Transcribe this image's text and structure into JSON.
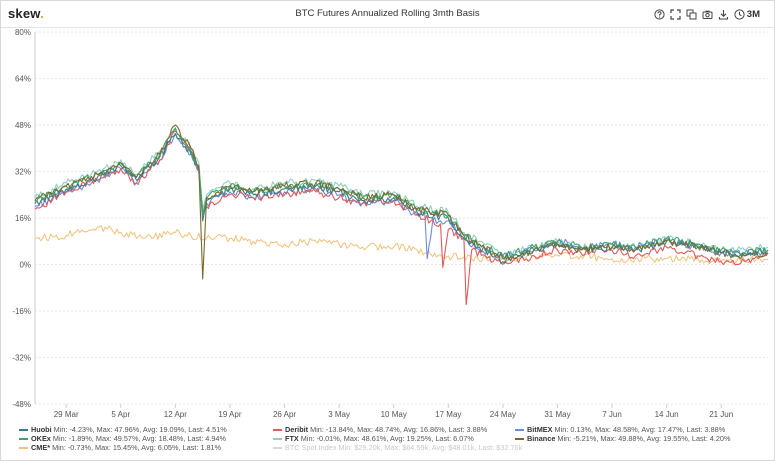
{
  "header": {
    "logo_text": "skew",
    "logo_dot": ".",
    "title": "BTC Futures Annualized Rolling 3mth Basis",
    "period_label": "3M",
    "icons": [
      "help-icon",
      "fullscreen-icon",
      "copy-icon",
      "camera-icon",
      "download-icon",
      "clock-icon"
    ]
  },
  "chart_data": {
    "type": "line",
    "title": "BTC Futures Annualized Rolling 3mth Basis",
    "xlabel": "",
    "ylabel": "",
    "y_ticks": [
      "80%",
      "64%",
      "48%",
      "32%",
      "16%",
      "0%",
      "-16%",
      "-32%",
      "-48%"
    ],
    "y_tick_values": [
      80,
      64,
      48,
      32,
      16,
      0,
      -16,
      -32,
      -48
    ],
    "ylim": [
      -48,
      80
    ],
    "x_ticks": [
      "29 Mar",
      "5 Apr",
      "12 Apr",
      "19 Apr",
      "26 Apr",
      "3 May",
      "10 May",
      "17 May",
      "24 May",
      "31 May",
      "7 Jun",
      "14 Jun",
      "21 Jun"
    ],
    "x_tick_days": [
      4,
      11,
      18,
      25,
      32,
      39,
      46,
      53,
      60,
      67,
      74,
      81,
      88
    ],
    "x_range_days": [
      0,
      94
    ],
    "grid": "horizontal",
    "colors": {
      "Huobi": "#3b7a8c",
      "Deribit": "#e05a5a",
      "BitMEX": "#6a8fd8",
      "OKEx": "#3aa46a",
      "FTX": "#8fd0c0",
      "Binance": "#7a6a2a",
      "CME*": "#f2c07a"
    },
    "series": [
      {
        "name": "Huobi",
        "legend_stats": "Min: -4.23%, Max: 47.96%, Avg: 19.09%, Last: 4.51%",
        "x": [
          0,
          4,
          8,
          11,
          13,
          16,
          18,
          20,
          21,
          21.5,
          22,
          25,
          28,
          32,
          36,
          39,
          42,
          46,
          49,
          53,
          55,
          57,
          60,
          64,
          67,
          70,
          74,
          77,
          81,
          85,
          88,
          91,
          94
        ],
        "values": [
          21,
          26,
          30,
          34,
          29,
          37,
          45,
          38,
          33,
          15,
          22,
          26,
          24,
          26,
          27,
          25,
          22,
          23,
          18,
          16,
          9,
          6,
          1,
          5,
          7,
          5,
          6,
          5,
          8,
          6,
          4,
          3,
          5
        ]
      },
      {
        "name": "Deribit",
        "legend_stats": "Min: -13.84%, Max: 48.74%, Avg: 16.86%, Last: 3.88%",
        "x": [
          0,
          4,
          8,
          11,
          13,
          16,
          18,
          20,
          21,
          21.5,
          22,
          25,
          28,
          32,
          36,
          39,
          42,
          46,
          49,
          52,
          52.3,
          53,
          55,
          55.3,
          56,
          60,
          64,
          67,
          70,
          74,
          77,
          81,
          85,
          88,
          91,
          94
        ],
        "values": [
          19,
          25,
          29,
          33,
          28,
          36,
          46,
          39,
          32,
          18,
          20,
          24,
          23,
          24,
          25,
          23,
          21,
          22,
          17,
          14,
          -1,
          12,
          9,
          -13.8,
          5,
          0,
          3,
          5,
          4,
          5,
          3,
          6,
          3,
          1,
          1,
          4
        ]
      },
      {
        "name": "BitMEX",
        "legend_stats": "Min: 0.13%, Max: 48.58%, Avg: 17.47%, Last: 3.88%",
        "x": [
          0,
          4,
          8,
          11,
          13,
          16,
          18,
          20,
          21,
          21.5,
          22,
          25,
          28,
          32,
          36,
          39,
          42,
          46,
          49,
          50,
          50.3,
          51,
          53,
          55,
          57,
          60,
          64,
          67,
          70,
          74,
          77,
          81,
          85,
          88,
          91,
          94
        ],
        "values": [
          20,
          25,
          29,
          33,
          28,
          36,
          45,
          38,
          32,
          18,
          21,
          25,
          23,
          25,
          26,
          24,
          21,
          22,
          17,
          17,
          2,
          15,
          15,
          9,
          5,
          3,
          5,
          8,
          6,
          7,
          6,
          8,
          6,
          4,
          4,
          4
        ]
      },
      {
        "name": "OKEx",
        "legend_stats": "Min: -1.89%, Max: 49.57%, Avg: 18.48%, Last: 4.94%",
        "x": [
          0,
          4,
          8,
          11,
          13,
          16,
          18,
          20,
          21,
          21.5,
          22,
          25,
          28,
          32,
          36,
          39,
          42,
          46,
          49,
          53,
          55,
          57,
          60,
          64,
          67,
          70,
          74,
          77,
          81,
          85,
          88,
          91,
          94
        ],
        "values": [
          22,
          27,
          31,
          35,
          30,
          38,
          47,
          39,
          34,
          17,
          23,
          27,
          25,
          27,
          28,
          26,
          23,
          24,
          19,
          17,
          10,
          7,
          3,
          6,
          8,
          6,
          7,
          6,
          9,
          7,
          5,
          4,
          5
        ]
      },
      {
        "name": "FTX",
        "legend_stats": "Min: -0.01%, Max: 48.61%, Avg: 19.25%, Last: 6.07%",
        "x": [
          0,
          4,
          8,
          11,
          13,
          16,
          18,
          20,
          21,
          21.5,
          22,
          25,
          28,
          32,
          36,
          39,
          42,
          46,
          49,
          53,
          55,
          57,
          60,
          64,
          67,
          70,
          74,
          77,
          81,
          85,
          88,
          91,
          94
        ],
        "values": [
          23,
          28,
          32,
          36,
          31,
          39,
          47,
          40,
          35,
          19,
          24,
          28,
          26,
          28,
          29,
          27,
          24,
          25,
          20,
          18,
          11,
          8,
          3,
          6,
          8,
          6,
          7,
          6,
          9,
          7,
          5,
          5,
          6
        ]
      },
      {
        "name": "Binance",
        "legend_stats": "Min: -5.21%, Max: 49.88%, Avg: 19.55%, Last: 4.20%",
        "x": [
          0,
          4,
          8,
          11,
          13,
          16,
          18,
          20,
          21,
          21.5,
          22,
          25,
          28,
          32,
          36,
          39,
          42,
          46,
          49,
          53,
          55,
          57,
          60,
          64,
          67,
          70,
          74,
          77,
          81,
          85,
          88,
          91,
          94
        ],
        "values": [
          22,
          27,
          31,
          35,
          30,
          38,
          48,
          40,
          34,
          -5,
          23,
          27,
          25,
          27,
          28,
          26,
          23,
          24,
          19,
          17,
          10,
          7,
          2,
          5,
          7,
          5,
          6,
          5,
          8,
          6,
          4,
          3,
          4
        ]
      },
      {
        "name": "CME*",
        "legend_stats": "Min: -0.73%, Max: 15.45%, Avg: 6.05%, Last: 1.81%",
        "x": [
          0,
          4,
          8,
          11,
          14,
          18,
          22,
          25,
          28,
          32,
          36,
          39,
          42,
          46,
          49,
          53,
          56,
          60,
          64,
          67,
          70,
          74,
          77,
          81,
          85,
          88,
          91,
          94
        ],
        "values": [
          9,
          10,
          13,
          11,
          9,
          11,
          9,
          9,
          8,
          7,
          8,
          7,
          6,
          6,
          5,
          3,
          2,
          2,
          3,
          3,
          3,
          2,
          2,
          2,
          2,
          1,
          1.5,
          1.8
        ]
      },
      {
        "name": "BTC Spot Index",
        "legend_stats": "Min: $29.20k, Max: $64.59k, Avg: $48.01k, Last: $32.76k",
        "hidden": true,
        "x": [],
        "values": []
      }
    ]
  }
}
